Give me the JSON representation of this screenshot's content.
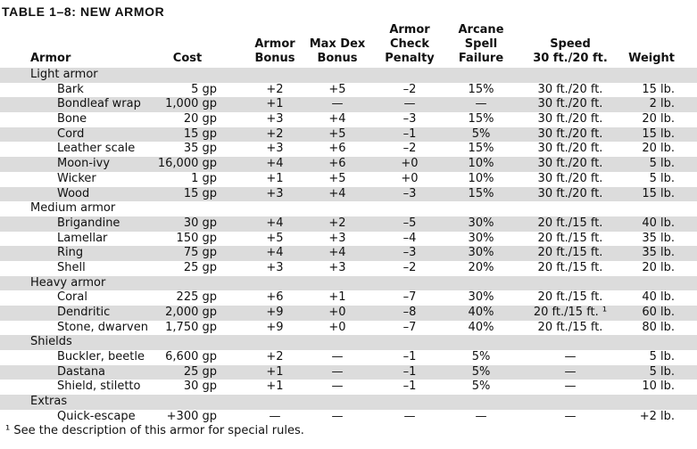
{
  "title": "Table 1–8: New Armor",
  "headers": {
    "armor": "Armor",
    "cost": "Cost",
    "armor_bonus": [
      "Armor",
      "Bonus"
    ],
    "max_dex": [
      "Max Dex",
      "Bonus"
    ],
    "acp": [
      "Armor",
      "Check",
      "Penalty"
    ],
    "asf": [
      "Arcane",
      "Spell",
      "Failure"
    ],
    "speed": [
      "Speed",
      "30 ft./20 ft."
    ],
    "weight": "Weight"
  },
  "rows": [
    {
      "kind": "category",
      "label": "Light armor"
    },
    {
      "kind": "item",
      "name": "Bark",
      "cost": "5 gp",
      "armor_bonus": "+2",
      "max_dex": "+5",
      "acp": "–2",
      "asf": "15%",
      "speed": "30 ft./20 ft.",
      "weight": "15 lb."
    },
    {
      "kind": "item",
      "name": "Bondleaf wrap",
      "cost": "1,000 gp",
      "armor_bonus": "+1",
      "max_dex": "—",
      "acp": "—",
      "asf": "—",
      "speed": "30 ft./20 ft.",
      "weight": "2 lb."
    },
    {
      "kind": "item",
      "name": "Bone",
      "cost": "20 gp",
      "armor_bonus": "+3",
      "max_dex": "+4",
      "acp": "–3",
      "asf": "15%",
      "speed": "30 ft./20 ft.",
      "weight": "20 lb."
    },
    {
      "kind": "item",
      "name": "Cord",
      "cost": "15 gp",
      "armor_bonus": "+2",
      "max_dex": "+5",
      "acp": "–1",
      "asf": "5%",
      "speed": "30 ft./20 ft.",
      "weight": "15 lb."
    },
    {
      "kind": "item",
      "name": "Leather scale",
      "cost": "35 gp",
      "armor_bonus": "+3",
      "max_dex": "+6",
      "acp": "–2",
      "asf": "15%",
      "speed": "30 ft./20 ft.",
      "weight": "20 lb."
    },
    {
      "kind": "item",
      "name": "Moon-ivy",
      "cost": "16,000 gp",
      "armor_bonus": "+4",
      "max_dex": "+6",
      "acp": "+0",
      "asf": "10%",
      "speed": "30 ft./20 ft.",
      "weight": "5 lb."
    },
    {
      "kind": "item",
      "name": "Wicker",
      "cost": "1 gp",
      "armor_bonus": "+1",
      "max_dex": "+5",
      "acp": "+0",
      "asf": "10%",
      "speed": "30 ft./20 ft.",
      "weight": "5 lb."
    },
    {
      "kind": "item",
      "name": "Wood",
      "cost": "15 gp",
      "armor_bonus": "+3",
      "max_dex": "+4",
      "acp": "–3",
      "asf": "15%",
      "speed": "30 ft./20 ft.",
      "weight": "15 lb."
    },
    {
      "kind": "category",
      "label": "Medium armor"
    },
    {
      "kind": "item",
      "name": "Brigandine",
      "cost": "30 gp",
      "armor_bonus": "+4",
      "max_dex": "+2",
      "acp": "–5",
      "asf": "30%",
      "speed": "20 ft./15 ft.",
      "weight": "40 lb."
    },
    {
      "kind": "item",
      "name": "Lamellar",
      "cost": "150 gp",
      "armor_bonus": "+5",
      "max_dex": "+3",
      "acp": "–4",
      "asf": "30%",
      "speed": "20 ft./15 ft.",
      "weight": "35 lb."
    },
    {
      "kind": "item",
      "name": "Ring",
      "cost": "75 gp",
      "armor_bonus": "+4",
      "max_dex": "+4",
      "acp": "–3",
      "asf": "30%",
      "speed": "20 ft./15 ft.",
      "weight": "35 lb."
    },
    {
      "kind": "item",
      "name": "Shell",
      "cost": "25 gp",
      "armor_bonus": "+3",
      "max_dex": "+3",
      "acp": "–2",
      "asf": "20%",
      "speed": "20 ft./15 ft.",
      "weight": "20 lb."
    },
    {
      "kind": "category",
      "label": "Heavy armor"
    },
    {
      "kind": "item",
      "name": "Coral",
      "cost": "225 gp",
      "armor_bonus": "+6",
      "max_dex": "+1",
      "acp": "–7",
      "asf": "30%",
      "speed": "20 ft./15 ft.",
      "weight": "40 lb."
    },
    {
      "kind": "item",
      "name": "Dendritic",
      "cost": "2,000 gp",
      "armor_bonus": "+9",
      "max_dex": "+0",
      "acp": "–8",
      "asf": "40%",
      "speed": "20 ft./15 ft. ¹",
      "weight": "60 lb."
    },
    {
      "kind": "item",
      "name": "Stone, dwarven",
      "cost": "1,750 gp",
      "armor_bonus": "+9",
      "max_dex": "+0",
      "acp": "–7",
      "asf": "40%",
      "speed": "20 ft./15 ft.",
      "weight": "80 lb."
    },
    {
      "kind": "category",
      "label": "Shields"
    },
    {
      "kind": "item",
      "name": "Buckler, beetle",
      "cost": "6,600 gp",
      "armor_bonus": "+2",
      "max_dex": "—",
      "acp": "–1",
      "asf": "5%",
      "speed": "—",
      "weight": "5 lb."
    },
    {
      "kind": "item",
      "name": "Dastana",
      "cost": "25 gp",
      "armor_bonus": "+1",
      "max_dex": "—",
      "acp": "–1",
      "asf": "5%",
      "speed": "—",
      "weight": "5 lb."
    },
    {
      "kind": "item",
      "name": "Shield, stiletto",
      "cost": "30 gp",
      "armor_bonus": "+1",
      "max_dex": "—",
      "acp": "–1",
      "asf": "5%",
      "speed": "—",
      "weight": "10 lb."
    },
    {
      "kind": "category",
      "label": "Extras"
    },
    {
      "kind": "item",
      "name": "Quick-escape",
      "cost": "+300 gp",
      "armor_bonus": "—",
      "max_dex": "—",
      "acp": "—",
      "asf": "—",
      "speed": "—",
      "weight": "+2 lb."
    }
  ],
  "footnote": "¹ See the description of this armor for special rules."
}
